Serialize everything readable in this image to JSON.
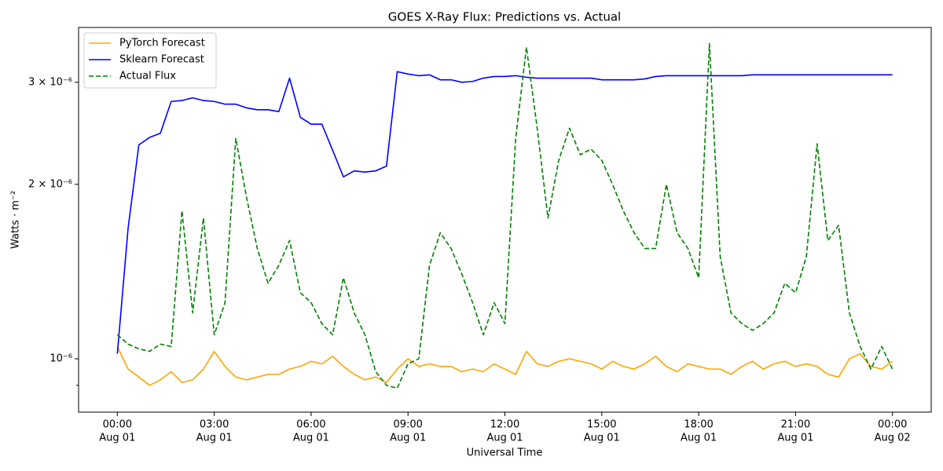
{
  "chart_data": {
    "type": "line",
    "title": "GOES X-Ray Flux: Predictions vs. Actual",
    "xlabel": "Universal Time",
    "ylabel": "Watts · m⁻²",
    "log_y": true,
    "grid": false,
    "legend": "upper left",
    "x": [
      "08-01T00:00",
      "08-01T00:20",
      "08-01T00:40",
      "08-01T01:00",
      "08-01T01:20",
      "08-01T01:40",
      "08-01T02:00",
      "08-01T02:20",
      "08-01T02:40",
      "08-01T03:00",
      "08-01T03:20",
      "08-01T03:40",
      "08-01T04:00",
      "08-01T04:20",
      "08-01T04:40",
      "08-01T05:00",
      "08-01T05:20",
      "08-01T05:40",
      "08-01T06:00",
      "08-01T06:20",
      "08-01T06:40",
      "08-01T07:00",
      "08-01T07:20",
      "08-01T07:40",
      "08-01T08:00",
      "08-01T08:20",
      "08-01T08:40",
      "08-01T09:00",
      "08-01T09:20",
      "08-01T09:40",
      "08-01T10:00",
      "08-01T10:20",
      "08-01T10:40",
      "08-01T11:00",
      "08-01T11:20",
      "08-01T11:40",
      "08-01T12:00",
      "08-01T12:20",
      "08-01T12:40",
      "08-01T13:00",
      "08-01T13:20",
      "08-01T13:40",
      "08-01T14:00",
      "08-01T14:20",
      "08-01T14:40",
      "08-01T15:00",
      "08-01T15:20",
      "08-01T15:40",
      "08-01T16:00",
      "08-01T16:20",
      "08-01T16:40",
      "08-01T17:00",
      "08-01T17:20",
      "08-01T17:40",
      "08-01T18:00",
      "08-01T18:20",
      "08-01T18:40",
      "08-01T19:00",
      "08-01T19:20",
      "08-01T19:40",
      "08-01T20:00",
      "08-01T20:20",
      "08-01T20:40",
      "08-01T21:00",
      "08-01T21:20",
      "08-01T21:40",
      "08-01T22:00",
      "08-01T22:20",
      "08-01T22:40",
      "08-01T23:00",
      "08-01T23:20",
      "08-01T23:40",
      "08-02T00:00"
    ],
    "series": [
      {
        "name": "PyTorch Forecast",
        "color": "orange",
        "dash": false,
        "values": [
          1.05e-06,
          9.6e-07,
          9.3e-07,
          9e-07,
          9.2e-07,
          9.5e-07,
          9.1e-07,
          9.2e-07,
          9.6e-07,
          1.03e-06,
          9.7e-07,
          9.3e-07,
          9.2e-07,
          9.3e-07,
          9.4e-07,
          9.4e-07,
          9.6e-07,
          9.7e-07,
          9.9e-07,
          9.8e-07,
          1.01e-06,
          9.7e-07,
          9.4e-07,
          9.2e-07,
          9.3e-07,
          9.1e-07,
          9.6e-07,
          1e-06,
          9.7e-07,
          9.8e-07,
          9.7e-07,
          9.7e-07,
          9.5e-07,
          9.6e-07,
          9.5e-07,
          9.8e-07,
          9.6e-07,
          9.4e-07,
          1.03e-06,
          9.8e-07,
          9.7e-07,
          9.9e-07,
          1e-06,
          9.9e-07,
          9.8e-07,
          9.6e-07,
          9.9e-07,
          9.7e-07,
          9.6e-07,
          9.8e-07,
          1.01e-06,
          9.7e-07,
          9.5e-07,
          9.8e-07,
          9.7e-07,
          9.6e-07,
          9.6e-07,
          9.4e-07,
          9.7e-07,
          9.9e-07,
          9.6e-07,
          9.8e-07,
          9.9e-07,
          9.7e-07,
          9.8e-07,
          9.7e-07,
          9.4e-07,
          9.3e-07,
          1e-06,
          1.02e-06,
          9.7e-07,
          9.6e-07,
          9.9e-07
        ]
      },
      {
        "name": "Sklearn Forecast",
        "color": "blue",
        "dash": false,
        "values": [
          1.02e-06,
          1.68e-06,
          2.34e-06,
          2.41e-06,
          2.45e-06,
          2.78e-06,
          2.79e-06,
          2.82e-06,
          2.79e-06,
          2.78e-06,
          2.75e-06,
          2.75e-06,
          2.71e-06,
          2.69e-06,
          2.69e-06,
          2.67e-06,
          3.05e-06,
          2.61e-06,
          2.54e-06,
          2.54e-06,
          2.29e-06,
          2.06e-06,
          2.11e-06,
          2.1e-06,
          2.11e-06,
          2.15e-06,
          3.13e-06,
          3.1e-06,
          3.08e-06,
          3.09e-06,
          3.03e-06,
          3.03e-06,
          3e-06,
          3.01e-06,
          3.05e-06,
          3.07e-06,
          3.07e-06,
          3.08e-06,
          3.06e-06,
          3.05e-06,
          3.05e-06,
          3.05e-06,
          3.05e-06,
          3.05e-06,
          3.05e-06,
          3.03e-06,
          3.03e-06,
          3.03e-06,
          3.03e-06,
          3.04e-06,
          3.07e-06,
          3.08e-06,
          3.08e-06,
          3.08e-06,
          3.08e-06,
          3.08e-06,
          3.08e-06,
          3.08e-06,
          3.08e-06,
          3.09e-06,
          3.09e-06,
          3.09e-06,
          3.09e-06,
          3.09e-06,
          3.09e-06,
          3.09e-06,
          3.09e-06,
          3.09e-06,
          3.09e-06,
          3.09e-06,
          3.09e-06,
          3.09e-06,
          3.09e-06
        ]
      },
      {
        "name": "Actual Flux",
        "color": "green",
        "dash": true,
        "values": [
          1.1e-06,
          1.06e-06,
          1.04e-06,
          1.03e-06,
          1.06e-06,
          1.05e-06,
          1.8e-06,
          1.2e-06,
          1.75e-06,
          1.1e-06,
          1.25e-06,
          2.4e-06,
          1.9e-06,
          1.55e-06,
          1.35e-06,
          1.45e-06,
          1.6e-06,
          1.3e-06,
          1.25e-06,
          1.15e-06,
          1.1e-06,
          1.38e-06,
          1.2e-06,
          1.1e-06,
          9.5e-07,
          9e-07,
          8.9e-07,
          9.8e-07,
          1e-06,
          1.45e-06,
          1.65e-06,
          1.55e-06,
          1.4e-06,
          1.25e-06,
          1.1e-06,
          1.25e-06,
          1.15e-06,
          2.4e-06,
          3.45e-06,
          2.5e-06,
          1.75e-06,
          2.2e-06,
          2.5e-06,
          2.25e-06,
          2.3e-06,
          2.2e-06,
          2e-06,
          1.8e-06,
          1.65e-06,
          1.55e-06,
          1.55e-06,
          2e-06,
          1.65e-06,
          1.55e-06,
          1.38e-06,
          3.5e-06,
          1.5e-06,
          1.2e-06,
          1.15e-06,
          1.12e-06,
          1.15e-06,
          1.2e-06,
          1.35e-06,
          1.3e-06,
          1.5e-06,
          2.35e-06,
          1.6e-06,
          1.7e-06,
          1.2e-06,
          1.05e-06,
          9.6e-07,
          1.05e-06,
          9.6e-07
        ]
      }
    ],
    "xlim": [
      "07-31T22:48",
      "08-02T01:12"
    ],
    "xticks": [
      {
        "value": "08-01T00:00",
        "label": [
          "00:00",
          "Aug 01"
        ]
      },
      {
        "value": "08-01T03:00",
        "label": [
          "03:00",
          "Aug 01"
        ]
      },
      {
        "value": "08-01T06:00",
        "label": [
          "06:00",
          "Aug 01"
        ]
      },
      {
        "value": "08-01T09:00",
        "label": [
          "09:00",
          "Aug 01"
        ]
      },
      {
        "value": "08-01T12:00",
        "label": [
          "12:00",
          "Aug 01"
        ]
      },
      {
        "value": "08-01T15:00",
        "label": [
          "15:00",
          "Aug 01"
        ]
      },
      {
        "value": "08-01T18:00",
        "label": [
          "18:00",
          "Aug 01"
        ]
      },
      {
        "value": "08-01T21:00",
        "label": [
          "21:00",
          "Aug 01"
        ]
      },
      {
        "value": "08-02T00:00",
        "label": [
          "00:00",
          "Aug 02"
        ]
      }
    ],
    "ylim": [
      8.09e-07,
      3.73e-06
    ],
    "yticks": [
      {
        "value": 1e-06,
        "label": "10⁻⁶"
      },
      {
        "value": 2e-06,
        "label": "2 × 10⁻⁶"
      },
      {
        "value": 3e-06,
        "label": "3 × 10⁻⁶"
      }
    ],
    "yminorticks": [
      9e-07
    ]
  }
}
